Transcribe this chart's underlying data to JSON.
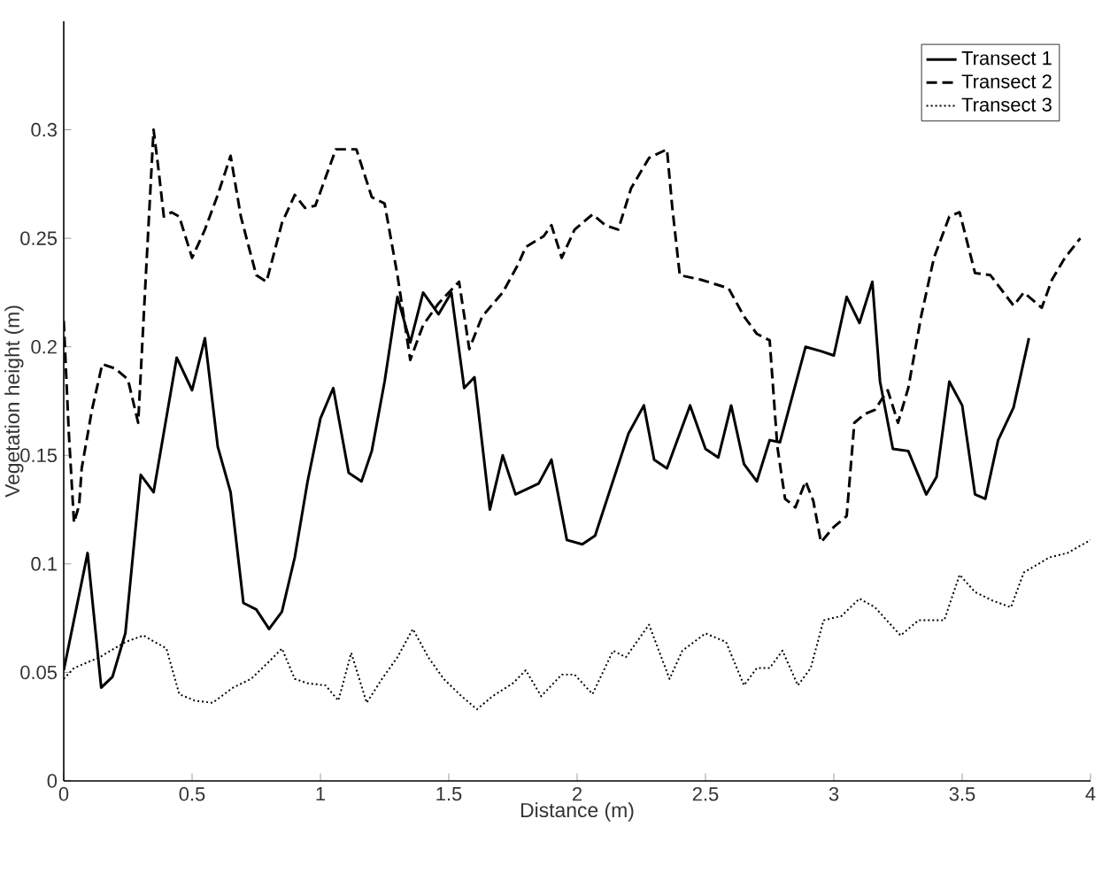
{
  "chart_data": {
    "type": "line",
    "xlabel": "Distance (m)",
    "ylabel": "Vegetation height (m)",
    "xlim": [
      0,
      4
    ],
    "ylim": [
      0,
      0.35
    ],
    "xticks": [
      0,
      0.5,
      1,
      1.5,
      2,
      2.5,
      3,
      3.5,
      4
    ],
    "yticks": [
      0,
      0.05,
      0.1,
      0.15,
      0.2,
      0.25,
      0.3
    ],
    "grid": false,
    "legend": "top right",
    "marker": "none",
    "series": [
      {
        "name": "Transect 1",
        "color": "#000000",
        "line_style": "solid",
        "x": [
          0,
          0.093,
          0.146,
          0.19,
          0.24,
          0.3,
          0.35,
          0.44,
          0.5,
          0.55,
          0.6,
          0.65,
          0.7,
          0.75,
          0.8,
          0.85,
          0.9,
          0.95,
          1.0,
          1.05,
          1.11,
          1.16,
          1.2,
          1.25,
          1.3,
          1.35,
          1.4,
          1.46,
          1.51,
          1.56,
          1.6,
          1.66,
          1.71,
          1.76,
          1.85,
          1.9,
          1.96,
          2.02,
          2.07,
          2.2,
          2.26,
          2.3,
          2.35,
          2.44,
          2.5,
          2.55,
          2.6,
          2.65,
          2.7,
          2.75,
          2.79,
          2.89,
          2.95,
          3.0,
          3.05,
          3.1,
          3.15,
          3.18,
          3.23,
          3.29,
          3.36,
          3.4,
          3.45,
          3.5,
          3.55,
          3.59,
          3.64,
          3.7,
          3.76
        ],
        "values": [
          0.051,
          0.105,
          0.043,
          0.048,
          0.068,
          0.141,
          0.133,
          0.195,
          0.18,
          0.204,
          0.154,
          0.133,
          0.082,
          0.079,
          0.07,
          0.078,
          0.103,
          0.138,
          0.167,
          0.181,
          0.142,
          0.138,
          0.152,
          0.184,
          0.223,
          0.202,
          0.225,
          0.215,
          0.225,
          0.181,
          0.186,
          0.125,
          0.15,
          0.132,
          0.137,
          0.148,
          0.111,
          0.109,
          0.113,
          0.16,
          0.173,
          0.148,
          0.144,
          0.173,
          0.153,
          0.149,
          0.173,
          0.146,
          0.138,
          0.157,
          0.156,
          0.2,
          0.198,
          0.196,
          0.223,
          0.211,
          0.23,
          0.184,
          0.153,
          0.152,
          0.132,
          0.14,
          0.184,
          0.173,
          0.132,
          0.13,
          0.157,
          0.172,
          0.204
        ]
      },
      {
        "name": "Transect 2",
        "color": "#000000",
        "line_style": "dashed",
        "x": [
          0,
          0.02,
          0.04,
          0.06,
          0.07,
          0.11,
          0.15,
          0.2,
          0.25,
          0.29,
          0.32,
          0.35,
          0.37,
          0.39,
          0.42,
          0.45,
          0.5,
          0.55,
          0.6,
          0.65,
          0.69,
          0.75,
          0.79,
          0.85,
          0.9,
          0.94,
          0.98,
          1.06,
          1.14,
          1.2,
          1.25,
          1.3,
          1.35,
          1.4,
          1.46,
          1.54,
          1.58,
          1.63,
          1.71,
          1.77,
          1.8,
          1.87,
          1.9,
          1.94,
          1.99,
          2.06,
          2.11,
          2.16,
          2.21,
          2.28,
          2.35,
          2.37,
          2.4,
          2.48,
          2.59,
          2.65,
          2.7,
          2.75,
          2.78,
          2.81,
          2.85,
          2.89,
          2.92,
          2.95,
          3.0,
          3.05,
          3.08,
          3.12,
          3.16,
          3.21,
          3.25,
          3.29,
          3.34,
          3.39,
          3.45,
          3.49,
          3.55,
          3.61,
          3.7,
          3.74,
          3.81,
          3.85,
          3.9,
          3.96
        ],
        "values": [
          0.212,
          0.16,
          0.119,
          0.127,
          0.144,
          0.171,
          0.192,
          0.19,
          0.185,
          0.165,
          0.233,
          0.3,
          0.281,
          0.26,
          0.262,
          0.26,
          0.241,
          0.254,
          0.27,
          0.288,
          0.26,
          0.233,
          0.23,
          0.257,
          0.27,
          0.264,
          0.265,
          0.291,
          0.291,
          0.269,
          0.266,
          0.233,
          0.194,
          0.21,
          0.22,
          0.23,
          0.199,
          0.214,
          0.225,
          0.238,
          0.246,
          0.251,
          0.256,
          0.241,
          0.254,
          0.261,
          0.256,
          0.254,
          0.273,
          0.287,
          0.291,
          0.265,
          0.233,
          0.231,
          0.227,
          0.214,
          0.206,
          0.203,
          0.154,
          0.13,
          0.126,
          0.138,
          0.129,
          0.11,
          0.117,
          0.122,
          0.165,
          0.169,
          0.171,
          0.18,
          0.165,
          0.181,
          0.214,
          0.241,
          0.26,
          0.262,
          0.234,
          0.233,
          0.219,
          0.225,
          0.218,
          0.231,
          0.241,
          0.25
        ]
      },
      {
        "name": "Transect 3",
        "color": "#000000",
        "line_style": "dotted",
        "x": [
          0,
          0.04,
          0.14,
          0.24,
          0.31,
          0.4,
          0.45,
          0.51,
          0.58,
          0.66,
          0.73,
          0.8,
          0.85,
          0.9,
          0.95,
          1.02,
          1.07,
          1.12,
          1.18,
          1.24,
          1.3,
          1.36,
          1.42,
          1.48,
          1.55,
          1.61,
          1.67,
          1.75,
          1.8,
          1.86,
          1.94,
          1.99,
          2.06,
          2.14,
          2.19,
          2.28,
          2.36,
          2.41,
          2.5,
          2.58,
          2.65,
          2.7,
          2.75,
          2.8,
          2.86,
          2.91,
          2.96,
          3.03,
          3.1,
          3.16,
          3.26,
          3.33,
          3.43,
          3.49,
          3.55,
          3.62,
          3.69,
          3.74,
          3.84,
          3.91,
          4.0
        ],
        "values": [
          0.047,
          0.052,
          0.057,
          0.064,
          0.067,
          0.061,
          0.04,
          0.037,
          0.036,
          0.043,
          0.047,
          0.055,
          0.061,
          0.047,
          0.045,
          0.044,
          0.037,
          0.059,
          0.036,
          0.047,
          0.057,
          0.07,
          0.057,
          0.047,
          0.039,
          0.033,
          0.039,
          0.045,
          0.051,
          0.039,
          0.049,
          0.049,
          0.04,
          0.06,
          0.057,
          0.072,
          0.047,
          0.06,
          0.068,
          0.064,
          0.044,
          0.052,
          0.052,
          0.06,
          0.044,
          0.052,
          0.074,
          0.076,
          0.084,
          0.08,
          0.067,
          0.074,
          0.074,
          0.095,
          0.087,
          0.083,
          0.08,
          0.096,
          0.103,
          0.105,
          0.111
        ]
      }
    ]
  }
}
